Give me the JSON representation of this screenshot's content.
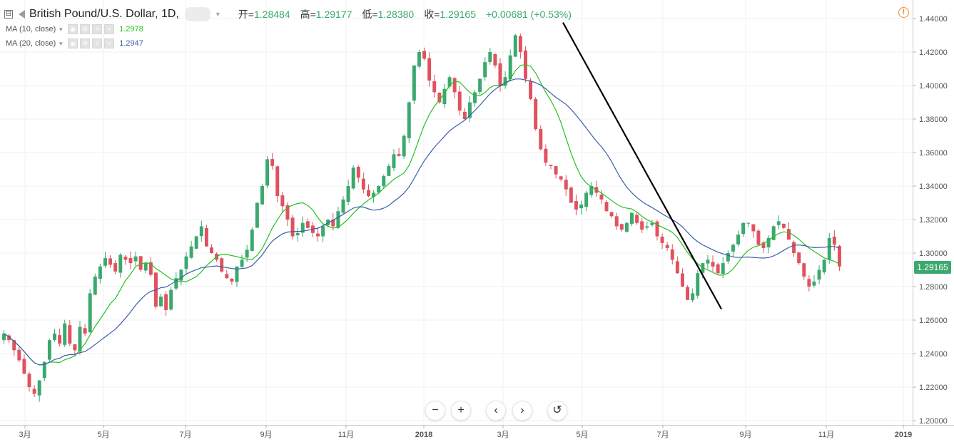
{
  "header": {
    "collapse_glyph": "⊟",
    "symbol": "British Pound/U.S. Dollar, 1D,",
    "open_label": "开=",
    "open_value": "1.28484",
    "high_label": "高=",
    "high_value": "1.29177",
    "low_label": "低=",
    "low_value": "1.28380",
    "close_label": "收=",
    "close_value": "1.29165",
    "change": "+0.00681 (+0.53%)"
  },
  "legend": [
    {
      "label": "MA (10, close)",
      "value": "1.2978",
      "color": "#25c21f"
    },
    {
      "label": "MA (20, close)",
      "value": "1.2947",
      "color": "#3c5da8"
    }
  ],
  "colors": {
    "up": "#3ba86f",
    "down": "#e0525f",
    "ma10": "#25c21f",
    "ma20": "#3c5da8",
    "trendline": "#000000",
    "grid": "#f0f0f0"
  },
  "price_tag": "1.29165",
  "nav": {
    "zoom_out": "−",
    "zoom_in": "+",
    "back": "‹",
    "forward": "›",
    "reset": "↺"
  },
  "icons": {
    "warning": "!"
  },
  "chart_data": {
    "type": "candlestick",
    "title": "British Pound/U.S. Dollar, 1D",
    "ylim": [
      1.2,
      1.44
    ],
    "y_ticks": [
      "1.20000",
      "1.22000",
      "1.24000",
      "1.26000",
      "1.28000",
      "1.30000",
      "1.32000",
      "1.34000",
      "1.36000",
      "1.38000",
      "1.40000",
      "1.42000",
      "1.44000"
    ],
    "x_ticks": [
      "3月",
      "5月",
      "7月",
      "9月",
      "11月",
      "2018",
      "3月",
      "5月",
      "7月",
      "9月",
      "11月",
      "2019"
    ],
    "grid": true,
    "closes_approx": [
      1.252,
      1.248,
      1.242,
      1.236,
      1.228,
      1.22,
      1.216,
      1.224,
      1.235,
      1.248,
      1.252,
      1.246,
      1.258,
      1.246,
      1.242,
      1.256,
      1.252,
      1.276,
      1.286,
      1.292,
      1.297,
      1.293,
      1.289,
      1.299,
      1.296,
      1.294,
      1.298,
      1.29,
      1.294,
      1.287,
      1.268,
      1.274,
      1.266,
      1.278,
      1.285,
      1.29,
      1.298,
      1.304,
      1.31,
      1.316,
      1.304,
      1.3,
      1.296,
      1.289,
      1.285,
      1.283,
      1.292,
      1.296,
      1.302,
      1.314,
      1.33,
      1.34,
      1.356,
      1.352,
      1.334,
      1.328,
      1.32,
      1.31,
      1.312,
      1.318,
      1.315,
      1.312,
      1.31,
      1.316,
      1.32,
      1.316,
      1.325,
      1.332,
      1.34,
      1.351,
      1.345,
      1.338,
      1.334,
      1.336,
      1.34,
      1.346,
      1.352,
      1.359,
      1.358,
      1.37,
      1.39,
      1.412,
      1.42,
      1.416,
      1.403,
      1.396,
      1.39,
      1.398,
      1.405,
      1.396,
      1.385,
      1.38,
      1.39,
      1.396,
      1.404,
      1.414,
      1.42,
      1.412,
      1.4,
      1.405,
      1.418,
      1.43,
      1.42,
      1.404,
      1.392,
      1.374,
      1.362,
      1.354,
      1.352,
      1.347,
      1.344,
      1.338,
      1.33,
      1.326,
      1.329,
      1.336,
      1.34,
      1.336,
      1.332,
      1.325,
      1.322,
      1.316,
      1.314,
      1.318,
      1.324,
      1.318,
      1.314,
      1.316,
      1.318,
      1.31,
      1.306,
      1.303,
      1.296,
      1.288,
      1.28,
      1.272,
      1.276,
      1.288,
      1.294,
      1.296,
      1.292,
      1.288,
      1.294,
      1.3,
      1.305,
      1.311,
      1.318,
      1.318,
      1.313,
      1.305,
      1.303,
      1.309,
      1.316,
      1.319,
      1.315,
      1.308,
      1.3,
      1.294,
      1.286,
      1.28,
      1.283,
      1.29,
      1.296,
      1.309,
      1.305,
      1.292
    ],
    "open": 1.28484,
    "high": 1.29177,
    "low": 1.2838,
    "close": 1.29165,
    "series": [
      {
        "name": "MA (10, close)",
        "last": 1.2978
      },
      {
        "name": "MA (20, close)",
        "last": 1.2947
      }
    ],
    "trendline": {
      "from": {
        "x": "2018-04-17",
        "y": 1.4376
      },
      "to": {
        "x": "2018-08-15",
        "y": 1.2666
      }
    }
  }
}
